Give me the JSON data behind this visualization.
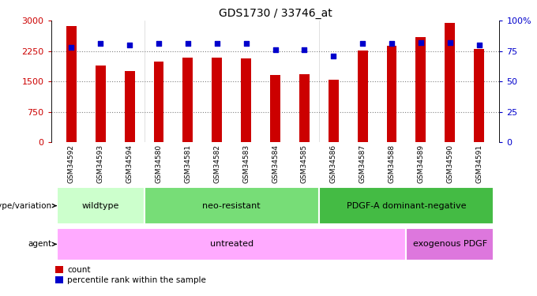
{
  "title": "GDS1730 / 33746_at",
  "samples": [
    "GSM34592",
    "GSM34593",
    "GSM34594",
    "GSM34580",
    "GSM34581",
    "GSM34582",
    "GSM34583",
    "GSM34584",
    "GSM34585",
    "GSM34586",
    "GSM34587",
    "GSM34588",
    "GSM34589",
    "GSM34590",
    "GSM34591"
  ],
  "counts": [
    2870,
    1900,
    1750,
    2000,
    2080,
    2080,
    2060,
    1660,
    1670,
    1540,
    2270,
    2390,
    2600,
    2950,
    2300
  ],
  "percentile_ranks": [
    78,
    81,
    80,
    81,
    81,
    81,
    81,
    76,
    76,
    71,
    81,
    81,
    82,
    82,
    80
  ],
  "bar_color": "#cc0000",
  "dot_color": "#0000cc",
  "ylim_left": [
    0,
    3000
  ],
  "ylim_right": [
    0,
    100
  ],
  "yticks_left": [
    0,
    750,
    1500,
    2250,
    3000
  ],
  "yticks_right": [
    0,
    25,
    50,
    75,
    100
  ],
  "ytick_labels_right": [
    "0",
    "25",
    "50",
    "75",
    "100%"
  ],
  "dotted_line_values": [
    750,
    1500,
    2250
  ],
  "genotype_groups": [
    {
      "label": "wildtype",
      "start": 0,
      "end": 3,
      "color": "#ccffcc"
    },
    {
      "label": "neo-resistant",
      "start": 3,
      "end": 9,
      "color": "#77dd77"
    },
    {
      "label": "PDGF-A dominant-negative",
      "start": 9,
      "end": 15,
      "color": "#44bb44"
    }
  ],
  "agent_groups": [
    {
      "label": "untreated",
      "start": 0,
      "end": 12,
      "color": "#ffaaff"
    },
    {
      "label": "exogenous PDGF",
      "start": 12,
      "end": 15,
      "color": "#dd77dd"
    }
  ],
  "genotype_label": "genotype/variation",
  "agent_label": "agent",
  "legend_count_label": "count",
  "legend_pct_label": "percentile rank within the sample",
  "bg_color": "#ffffff",
  "tick_area_color": "#d8d8d8",
  "tick_label_color_left": "#cc0000",
  "tick_label_color_right": "#0000cc",
  "bar_width": 0.35,
  "xticklabel_fontsize": 6.5,
  "title_fontsize": 10
}
